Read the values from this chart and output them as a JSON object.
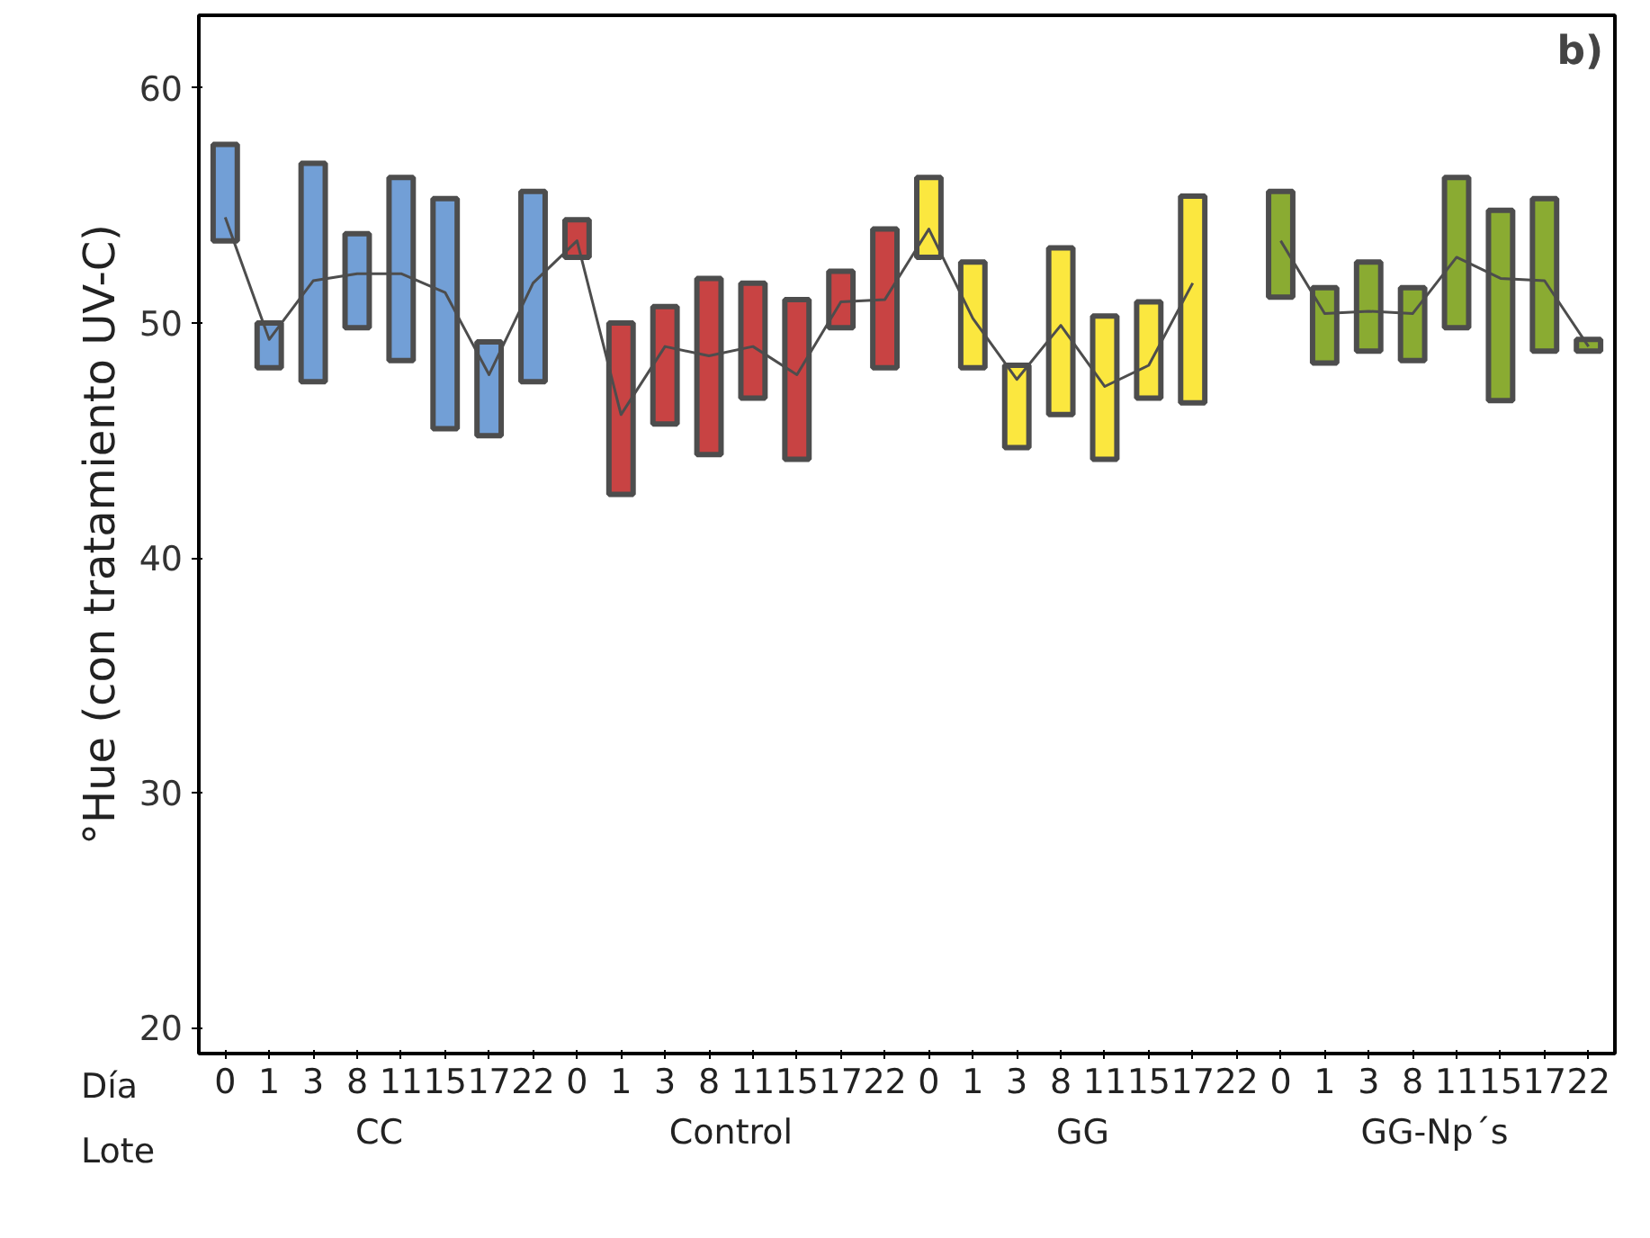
{
  "chart_data": {
    "type": "bar",
    "title": "b)",
    "ylabel": "°Hue (con tratamiento UV-C)",
    "categories": [
      "0",
      "1",
      "3",
      "8",
      "11",
      "15",
      "17",
      "22",
      "0",
      "1",
      "3",
      "8",
      "11",
      "15",
      "17",
      "22",
      "0",
      "1",
      "3",
      "8",
      "11",
      "15",
      "17",
      "22",
      "0",
      "1",
      "3",
      "8",
      "11",
      "15",
      "17",
      "22"
    ],
    "annotations": [
      "Día",
      "Lote",
      "CC",
      "Control",
      "GG",
      "GG-Np´s"
    ],
    "ylim": [
      18.9,
      63.1
    ],
    "yticks": [
      20,
      30,
      40,
      50,
      60
    ],
    "grid": false,
    "series": [
      {
        "base": [
          53.5,
          48.1,
          47.5,
          49.8,
          48.4,
          45.5,
          45.2,
          47.5,
          52.8,
          42.7,
          45.7,
          44.4,
          46.8,
          44.2,
          49.8,
          48.1,
          52.8,
          48.1,
          44.7,
          46.1,
          44.2,
          46.8,
          46.6,
          null,
          51.1,
          48.3,
          48.8,
          48.4,
          49.8,
          46.7,
          48.8,
          48.8
        ],
        "values": [
          4.1,
          1.9,
          9.3,
          4.0,
          7.8,
          9.8,
          4.0,
          8.1,
          1.6,
          7.3,
          5.0,
          7.5,
          4.9,
          6.8,
          2.4,
          5.9,
          3.4,
          4.5,
          3.5,
          7.1,
          6.1,
          4.1,
          8.8,
          null,
          4.5,
          3.2,
          3.8,
          3.1,
          6.4,
          8.1,
          6.5,
          0.5
        ],
        "colors": [
          "#729fd6",
          "#729fd6",
          "#729fd6",
          "#729fd6",
          "#729fd6",
          "#729fd6",
          "#729fd6",
          "#729fd6",
          "#c84343",
          "#c84343",
          "#c84343",
          "#c84343",
          "#c84343",
          "#c84343",
          "#c84343",
          "#c84343",
          "#fbe73f",
          "#fbe73f",
          "#fbe73f",
          "#fbe73f",
          "#fbe73f",
          "#fbe73f",
          "#fbe73f",
          "#fbe73f",
          "#8aab32",
          "#8aab32",
          "#8aab32",
          "#8aab32",
          "#8aab32",
          "#8aab32",
          "#8aab32",
          "#8aab32"
        ]
      },
      {
        "type": "line",
        "color": "#4d4d4d",
        "values": [
          54.5,
          49.3,
          51.8,
          52.1,
          52.1,
          51.3,
          47.8,
          51.7,
          53.5,
          46.1,
          49.0,
          48.6,
          49.0,
          47.8,
          50.9,
          51.0,
          54.0,
          50.2,
          47.6,
          49.9,
          47.3,
          48.2,
          51.7,
          null,
          53.5,
          50.4,
          50.5,
          50.4,
          52.8,
          51.9,
          51.8,
          49.0
        ]
      }
    ]
  }
}
